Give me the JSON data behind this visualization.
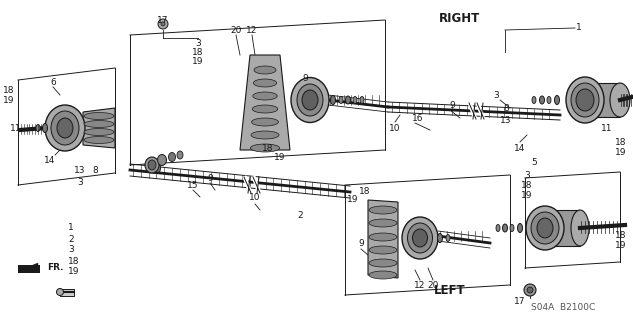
{
  "bg_color": "#ffffff",
  "line_color": "#1a1a1a",
  "title_right": "RIGHT",
  "title_left": "LEFT",
  "watermark": "S04A  B2100C",
  "fr_label": "FR.",
  "figsize": [
    6.33,
    3.2
  ],
  "dpi": 100
}
